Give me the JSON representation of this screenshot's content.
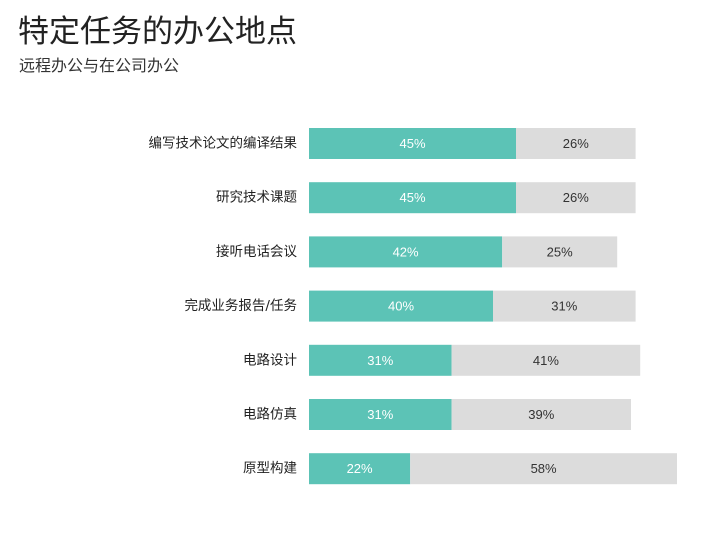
{
  "title": "特定任务的办公地点",
  "subtitle": "远程办公与在公司办公",
  "colors": {
    "remote": "#5cc3b6",
    "office": "#dcdcdc",
    "remote_text": "#ffffff",
    "office_text": "#333333"
  },
  "chart_data": {
    "type": "bar",
    "orientation": "horizontal",
    "stacked": true,
    "title": "特定任务的办公地点",
    "subtitle": "远程办公与在公司办公",
    "categories": [
      "编写技术论文的编译结果",
      "研究技术课题",
      "接听电话会议",
      "完成业务报告/任务",
      "电路设计",
      "电路仿真",
      "原型构建"
    ],
    "series": [
      {
        "values": [
          45,
          45,
          42,
          40,
          31,
          31,
          22
        ],
        "labels": [
          "45%",
          "45%",
          "42%",
          "40%",
          "31%",
          "31%",
          "22%"
        ]
      },
      {
        "values": [
          26,
          26,
          25,
          31,
          41,
          39,
          58
        ],
        "labels": [
          "26%",
          "26%",
          "25%",
          "31%",
          "41%",
          "39%",
          "58%"
        ]
      }
    ],
    "unit": "%",
    "grid": false,
    "legend": "none"
  }
}
